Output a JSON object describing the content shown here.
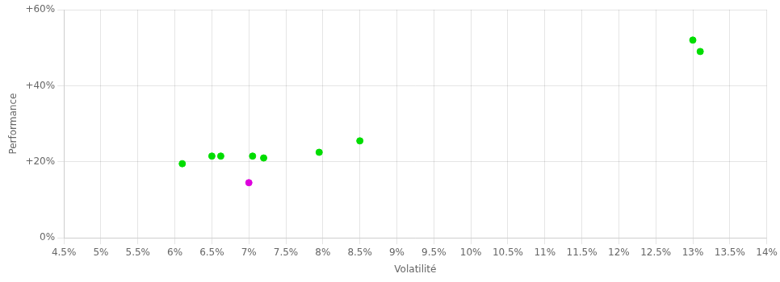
{
  "chart_data": {
    "type": "scatter",
    "xlabel": "Volatilité",
    "ylabel": "Performance",
    "series": [
      {
        "color": "#00dd00",
        "x": [
          6.1,
          6.5,
          6.62,
          7.05,
          7.2,
          7.95,
          8.5,
          13.0,
          13.1
        ],
        "values": [
          19.5,
          21.5,
          21.5,
          21.5,
          21.0,
          22.5,
          25.5,
          52,
          49
        ]
      },
      {
        "color": "#dd00dd",
        "x": [
          7.0
        ],
        "values": [
          14.5
        ]
      }
    ],
    "xlim": [
      4.5,
      14.0
    ],
    "xticks": [
      {
        "value": 4.5,
        "label": "4.5%"
      },
      {
        "value": 5,
        "label": "5%"
      },
      {
        "value": 5.5,
        "label": "5.5%"
      },
      {
        "value": 6,
        "label": "6%"
      },
      {
        "value": 6.5,
        "label": "6.5%"
      },
      {
        "value": 7,
        "label": "7%"
      },
      {
        "value": 7.5,
        "label": "7.5%"
      },
      {
        "value": 8,
        "label": "8%"
      },
      {
        "value": 8.5,
        "label": "8.5%"
      },
      {
        "value": 9,
        "label": "9%"
      },
      {
        "value": 9.5,
        "label": "9.5%"
      },
      {
        "value": 10,
        "label": "10%"
      },
      {
        "value": 10.5,
        "label": "10.5%"
      },
      {
        "value": 11,
        "label": "11%"
      },
      {
        "value": 11.5,
        "label": "11.5%"
      },
      {
        "value": 12,
        "label": "12%"
      },
      {
        "value": 12.5,
        "label": "12.5%"
      },
      {
        "value": 13,
        "label": "13%"
      },
      {
        "value": 13.5,
        "label": "13.5%"
      },
      {
        "value": 14,
        "label": "14%"
      }
    ],
    "ylim": [
      0,
      60
    ],
    "yticks": [
      {
        "value": 0,
        "label": "0%"
      },
      {
        "value": 20,
        "label": "+20%"
      },
      {
        "value": 40,
        "label": "+40%"
      },
      {
        "value": 60,
        "label": "+60%"
      }
    ],
    "grid": true
  }
}
